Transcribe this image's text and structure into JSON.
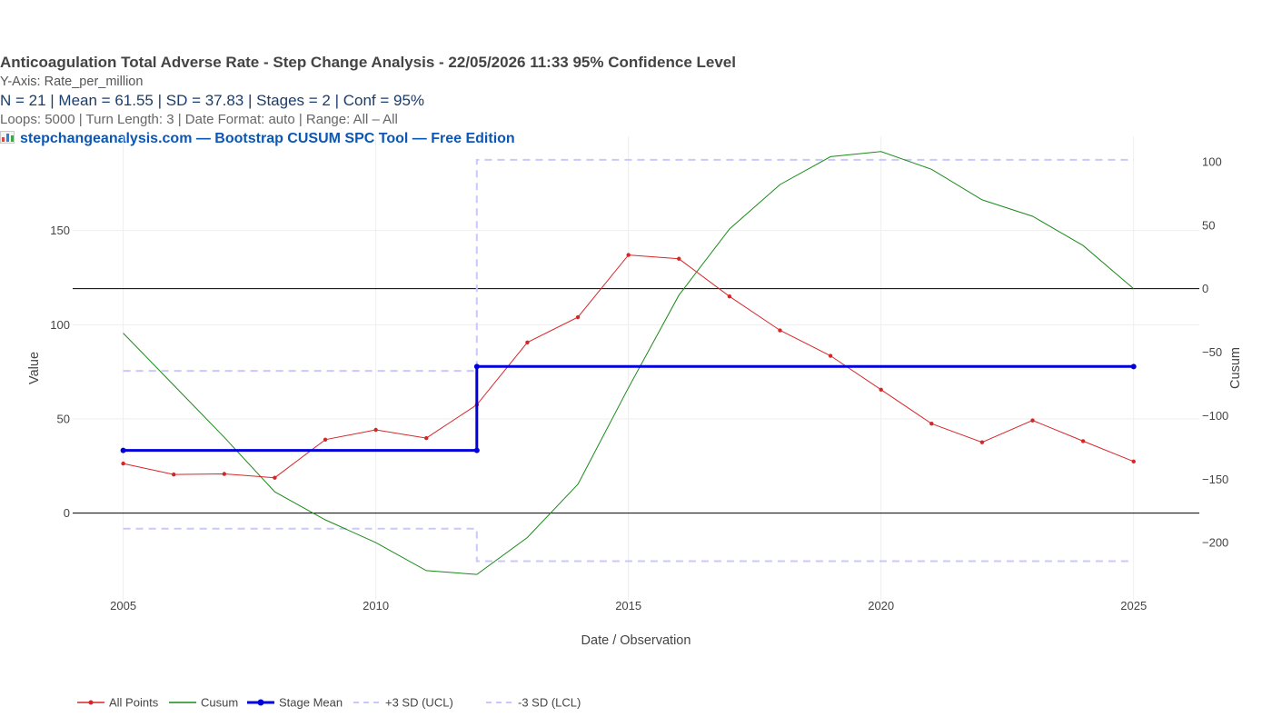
{
  "header": {
    "title": "Anticoagulation Total Adverse Rate - Step Change Analysis - 22/05/2026 11:33 95% Confidence Level",
    "y_axis_line": "Y-Axis: Rate_per_million",
    "stats_line": "N = 21  |  Mean = 61.55  |  SD = 37.83  |  Stages = 2  |  Conf = 95%",
    "loops_line": "Loops: 5000  |  Turn Length: 3  |  Date Format: auto  |  Range: All – All",
    "brand_text": "stepchangeanalysis.com — Bootstrap CUSUM SPC Tool — Free Edition",
    "brand_icon": "bar-chart-icon"
  },
  "chart_data": {
    "type": "line",
    "xlabel": "Date / Observation",
    "ylabel": "Value",
    "y2label": "Cusum",
    "xlim": [
      2004.0,
      2026.3
    ],
    "ylim": [
      -46,
      200
    ],
    "y2lim": [
      -245,
      120
    ],
    "x_ticks": [
      2005,
      2010,
      2015,
      2020,
      2025
    ],
    "y_ticks": [
      0,
      50,
      100,
      150
    ],
    "y2_ticks": [
      -200,
      -150,
      -100,
      -50,
      0,
      50,
      100
    ],
    "grid": true,
    "legend_position": "bottom",
    "series": [
      {
        "name": "All Points",
        "axis": "y",
        "color": "#d62728",
        "markers": true,
        "x": [
          2005,
          2006,
          2007,
          2008,
          2009,
          2010,
          2011,
          2012,
          2013,
          2014,
          2015,
          2016,
          2017,
          2018,
          2019,
          2020,
          2021,
          2022,
          2023,
          2024,
          2025
        ],
        "values": [
          26.3,
          20.5,
          20.8,
          18.8,
          39.0,
          44.2,
          39.8,
          57.5,
          90.6,
          104.0,
          137.0,
          135.0,
          115.0,
          97.0,
          83.5,
          65.5,
          47.5,
          37.6,
          49.2,
          38.2,
          27.4
        ]
      },
      {
        "name": "Cusum",
        "axis": "y2",
        "color": "#1a8a1a",
        "markers": false,
        "x": [
          2005,
          2006,
          2007,
          2008,
          2009,
          2010,
          2011,
          2012,
          2013,
          2014,
          2015,
          2016,
          2017,
          2018,
          2019,
          2020,
          2021,
          2022,
          2023,
          2024,
          2025
        ],
        "values": [
          -35,
          -76,
          -117,
          -160,
          -182,
          -200,
          -222,
          -225,
          -196,
          -154,
          -78,
          -5,
          47,
          82,
          104,
          108,
          94,
          70,
          57,
          34,
          0
        ]
      },
      {
        "name": "Stage Mean",
        "axis": "y",
        "color": "#0000dd",
        "markers": true,
        "shape": "step",
        "x": [
          2005,
          2012,
          2012,
          2025
        ],
        "values": [
          33.3,
          33.3,
          77.8,
          77.8
        ]
      },
      {
        "name": "+3 SD (UCL)",
        "axis": "y",
        "color": "#c8c8ff",
        "dash": true,
        "shape": "step",
        "x": [
          2005,
          2012,
          2012,
          2025
        ],
        "values": [
          75.5,
          75.5,
          187.5,
          187.5
        ]
      },
      {
        "name": "-3 SD (LCL)",
        "axis": "y",
        "color": "#c8c8ff",
        "dash": true,
        "shape": "step",
        "x": [
          2005,
          2012,
          2012,
          2025
        ],
        "values": [
          -8.3,
          -8.3,
          -25.5,
          -25.5
        ]
      }
    ],
    "reference_lines": {
      "y_zero": 0,
      "y2_zero": 0
    },
    "colors": {
      "axis_line": "#000000",
      "grid": "#eeeeee",
      "tick_text": "#444444"
    }
  }
}
